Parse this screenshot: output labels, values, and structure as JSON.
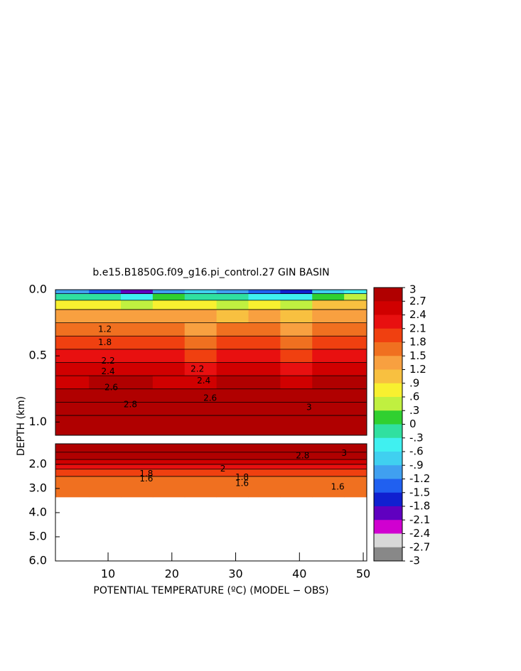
{
  "chart_data": {
    "type": "contour",
    "title": "b.e15.B1850G.f09_g16.pi_control.27 GIN BASIN",
    "ylabel": "DEPTH (km)",
    "xlabel": "POTENTIAL TEMPERATURE (ºC) (MODEL − OBS)",
    "xlim": [
      1.75,
      50.55
    ],
    "xticks": [
      10,
      20,
      30,
      40,
      50
    ],
    "panels": [
      {
        "ylim": [
          1.1,
          0
        ],
        "yticks": [
          {
            "value": 0,
            "label": "0.0"
          },
          0.5,
          {
            "value": 1,
            "label": "1.0"
          }
        ],
        "x_edges": [
          1.75,
          7,
          12,
          17,
          22,
          27,
          32,
          37,
          42,
          47,
          50.55
        ],
        "depth_edges": [
          0,
          0.03,
          0.08,
          0.15,
          0.25,
          0.35,
          0.45,
          0.55,
          0.65,
          0.75,
          0.85,
          0.95,
          1.1
        ],
        "values": [
          [
            -1.2,
            -1.5,
            -2.1,
            -1.2,
            -0.9,
            -1.2,
            -1.5,
            -1.8,
            -0.9,
            -0.6
          ],
          [
            -0.3,
            -0.3,
            -0.6,
            0,
            -0.3,
            -0.3,
            -0.6,
            -0.6,
            0,
            0.3
          ],
          [
            0.6,
            0.6,
            0.3,
            0.6,
            0.6,
            0.3,
            0.6,
            0.3,
            0.9,
            0.9
          ],
          [
            1.2,
            1.2,
            1.2,
            1.2,
            1.2,
            0.9,
            1.2,
            0.9,
            1.2,
            1.2
          ],
          [
            1.5,
            1.5,
            1.5,
            1.5,
            1.2,
            1.5,
            1.5,
            1.2,
            1.5,
            1.5
          ],
          [
            1.8,
            1.8,
            1.8,
            1.8,
            1.5,
            1.8,
            1.8,
            1.5,
            1.8,
            1.8
          ],
          [
            2.1,
            2.1,
            2.1,
            2.1,
            1.8,
            2.1,
            2.1,
            1.8,
            2.1,
            2.1
          ],
          [
            2.4,
            2.4,
            2.4,
            2.4,
            2.1,
            2.4,
            2.4,
            2.1,
            2.4,
            2.4
          ],
          [
            2.4,
            2.7,
            2.7,
            2.4,
            2.4,
            2.7,
            2.7,
            2.4,
            2.7,
            2.7
          ],
          [
            2.7,
            2.7,
            2.7,
            2.7,
            2.7,
            2.7,
            2.7,
            2.7,
            3,
            3
          ],
          [
            3,
            3,
            3,
            3,
            2.7,
            3,
            3,
            2.7,
            3,
            3
          ],
          [
            3,
            3,
            3,
            3,
            3,
            3,
            3,
            3,
            3,
            3
          ]
        ],
        "contour_labels": [
          {
            "value": 1.2,
            "x": 9.5,
            "depth": 0.3
          },
          {
            "value": 1.8,
            "x": 9.5,
            "depth": 0.4
          },
          {
            "value": 2.2,
            "x": 10,
            "depth": 0.54
          },
          {
            "value": 2.4,
            "x": 10,
            "depth": 0.62
          },
          {
            "value": 2.6,
            "x": 10.5,
            "depth": 0.74
          },
          {
            "value": 2.8,
            "x": 13.5,
            "depth": 0.87
          },
          {
            "value": 2.2,
            "x": 24,
            "depth": 0.6
          },
          {
            "value": 2.4,
            "x": 25,
            "depth": 0.69
          },
          {
            "value": 2.6,
            "x": 26,
            "depth": 0.82
          },
          {
            "value": 3,
            "x": 41.5,
            "depth": 0.89
          }
        ]
      },
      {
        "ylim": [
          6,
          1.15
        ],
        "yticks": [
          {
            "value": 2,
            "label": "2.0"
          },
          {
            "value": 3,
            "label": "3.0"
          },
          {
            "value": 4,
            "label": "4.0"
          },
          {
            "value": 5,
            "label": "5.0"
          },
          {
            "value": 6,
            "label": "6.0"
          }
        ],
        "x_edges": [
          1.75,
          7,
          12,
          17,
          22,
          27,
          32,
          37,
          42,
          47,
          50.55
        ],
        "depth_edges": [
          1.15,
          1.5,
          1.8,
          2.0,
          2.2,
          2.5,
          3.35,
          6.0
        ],
        "values": [
          [
            3,
            3,
            3,
            3,
            3,
            3,
            3,
            3,
            3,
            3
          ],
          [
            2.7,
            2.7,
            2.7,
            2.7,
            2.7,
            2.7,
            2.7,
            2.7,
            2.7,
            2.7
          ],
          [
            2.4,
            2.4,
            2.4,
            2.4,
            2.4,
            2.4,
            2.4,
            2.4,
            2.4,
            2.4
          ],
          [
            2.1,
            2.1,
            2.1,
            2.1,
            2.1,
            2.1,
            2.1,
            2.1,
            2.1,
            2.1
          ],
          [
            1.8,
            1.8,
            1.8,
            1.8,
            1.8,
            1.8,
            1.8,
            1.8,
            1.8,
            1.8
          ],
          [
            1.6,
            1.6,
            1.6,
            1.6,
            1.6,
            1.6,
            1.6,
            1.6,
            1.6,
            1.6
          ],
          [
            null,
            null,
            null,
            null,
            null,
            null,
            null,
            null,
            null,
            null
          ]
        ],
        "contour_labels": [
          {
            "value": 1.8,
            "x": 16,
            "depth": 2.4
          },
          {
            "value": 1.6,
            "x": 16,
            "depth": 2.6
          },
          {
            "value": 2,
            "x": 28,
            "depth": 2.2
          },
          {
            "value": 1.8,
            "x": 31,
            "depth": 2.55
          },
          {
            "value": 1.6,
            "x": 31,
            "depth": 2.8
          },
          {
            "value": 2.8,
            "x": 40.5,
            "depth": 1.65
          },
          {
            "value": 3,
            "x": 47,
            "depth": 1.55
          },
          {
            "value": 1.6,
            "x": 46,
            "depth": 2.95
          }
        ]
      }
    ],
    "colorbar": {
      "levels": [
        3,
        2.7,
        2.4,
        2.1,
        1.8,
        1.5,
        1.2,
        {
          "value": 0.9,
          "label": ".9"
        },
        {
          "value": 0.6,
          "label": ".6"
        },
        {
          "value": 0.3,
          "label": ".3"
        },
        0,
        {
          "value": -0.3,
          "label": "-.3"
        },
        {
          "value": -0.6,
          "label": "-.6"
        },
        {
          "value": -0.9,
          "label": "-.9"
        },
        -1.2,
        -1.5,
        -1.8,
        -2.1,
        -2.4,
        -2.7,
        -3
      ],
      "colors": [
        "#b00000",
        "#d00000",
        "#e81010",
        "#f04010",
        "#f07020",
        "#f8a040",
        "#f8c040",
        "#f8f030",
        "#c0f040",
        "#30d030",
        "#30e0a0",
        "#40f0f0",
        "#40d0f0",
        "#40a0f0",
        "#2060f0",
        "#1020d0",
        "#6000c0",
        "#d000d0",
        "#d8d8d8",
        "#888888"
      ]
    }
  }
}
